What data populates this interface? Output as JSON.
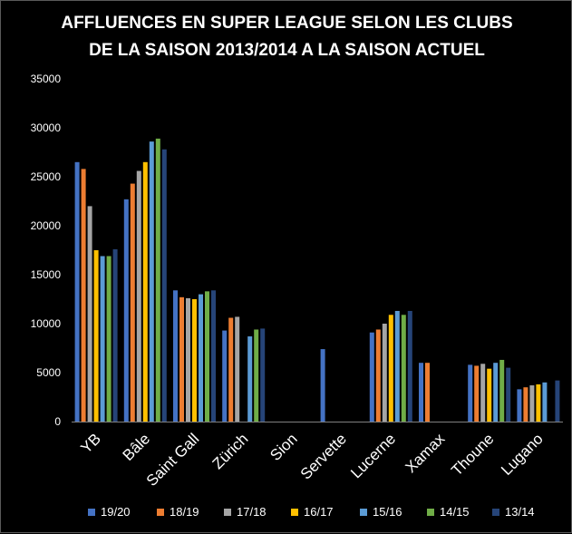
{
  "chart_data": {
    "type": "bar",
    "title_line1": "AFFLUENCES EN SUPER LEAGUE SELON LES CLUBS",
    "title_line2": "DE LA SAISON 2013/2014 A LA SAISON ACTUEL",
    "xlabel": "",
    "ylabel": "",
    "ylim": [
      0,
      35000
    ],
    "yticks": [
      0,
      5000,
      10000,
      15000,
      20000,
      25000,
      30000,
      35000
    ],
    "ytick_labels": [
      "0",
      "5000",
      "10000",
      "15000",
      "20000",
      "25000",
      "30000",
      "35000"
    ],
    "grid": false,
    "legend_position": "bottom",
    "categories": [
      "YB",
      "Bâle",
      "Saint Gall",
      "Zürich",
      "Sion",
      "Servette",
      "Lucerne",
      "Xamax",
      "Thoune",
      "Lugano"
    ],
    "series": [
      {
        "name": "19/20",
        "color": "#4472C4",
        "values": [
          26500,
          22700,
          13400,
          9300,
          null,
          7400,
          9100,
          6000,
          5800,
          3300
        ]
      },
      {
        "name": "18/19",
        "color": "#ED7D31",
        "values": [
          25800,
          24300,
          12700,
          10600,
          null,
          null,
          9400,
          6000,
          5700,
          3500
        ]
      },
      {
        "name": "17/18",
        "color": "#A5A5A5",
        "values": [
          22000,
          25600,
          12600,
          10700,
          null,
          null,
          10000,
          null,
          5900,
          3700
        ]
      },
      {
        "name": "16/17",
        "color": "#FFC000",
        "values": [
          17500,
          26500,
          12500,
          null,
          null,
          null,
          10900,
          null,
          5400,
          3800
        ]
      },
      {
        "name": "15/16",
        "color": "#5B9BD5",
        "values": [
          16900,
          28600,
          13000,
          8700,
          null,
          null,
          11300,
          null,
          6000,
          4000
        ]
      },
      {
        "name": "14/15",
        "color": "#70AD47",
        "values": [
          16900,
          28900,
          13300,
          9400,
          null,
          null,
          10900,
          null,
          6300,
          null
        ]
      },
      {
        "name": "13/14",
        "color": "#264478",
        "values": [
          17600,
          27800,
          13400,
          9500,
          null,
          null,
          11300,
          null,
          5500,
          4200
        ]
      }
    ]
  }
}
